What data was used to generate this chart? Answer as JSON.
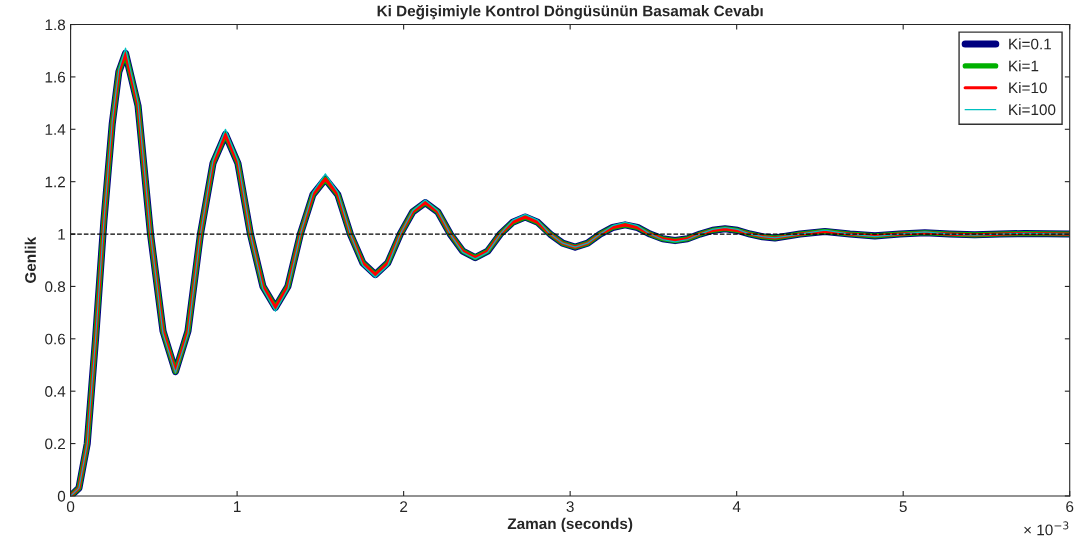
{
  "chart_data": {
    "type": "line",
    "title": "Ki Değişimiyle Kontrol Döngüsünün Basamak Cevabı",
    "xlabel": "Zaman (seconds)",
    "ylabel": "Genlik",
    "annotations": [
      "× 10$^{−3}$"
    ],
    "x": [
      0,
      0.05,
      0.1,
      0.15,
      0.2,
      0.25,
      0.29,
      0.33,
      0.405,
      0.48,
      0.555,
      0.63,
      0.705,
      0.78,
      0.855,
      0.93,
      1.005,
      1.08,
      1.155,
      1.23,
      1.305,
      1.38,
      1.455,
      1.53,
      1.605,
      1.68,
      1.755,
      1.83,
      1.905,
      1.98,
      2.055,
      2.13,
      2.205,
      2.28,
      2.355,
      2.43,
      2.505,
      2.58,
      2.655,
      2.73,
      2.805,
      2.88,
      2.955,
      3.03,
      3.105,
      3.18,
      3.255,
      3.33,
      3.405,
      3.48,
      3.555,
      3.63,
      3.705,
      3.78,
      3.855,
      3.93,
      4.005,
      4.08,
      4.155,
      4.23,
      4.38,
      4.53,
      4.68,
      4.83,
      4.98,
      5.13,
      5.28,
      5.43,
      5.58,
      5.73,
      6.0
    ],
    "series": [
      {
        "name": "Ki=0.1",
        "color": "#000080",
        "values": [
          0,
          0.03,
          0.2,
          0.6,
          1.05,
          1.42,
          1.62,
          1.69,
          1.49,
          1.0,
          0.63,
          0.475,
          0.63,
          1.0,
          1.27,
          1.38,
          1.27,
          1.0,
          0.8,
          0.72,
          0.8,
          1.0,
          1.15,
          1.21,
          1.15,
          1.0,
          0.89,
          0.845,
          0.89,
          1.0,
          1.085,
          1.12,
          1.085,
          1.0,
          0.935,
          0.91,
          0.935,
          1.0,
          1.045,
          1.065,
          1.045,
          1.0,
          0.965,
          0.95,
          0.965,
          1.0,
          1.025,
          1.035,
          1.025,
          1.0,
          0.982,
          0.975,
          0.982,
          1.0,
          1.014,
          1.02,
          1.014,
          1.0,
          0.99,
          0.985,
          1.0,
          1.01,
          1.0,
          0.993,
          1.0,
          1.005,
          1.0,
          0.997,
          1.0,
          1.002,
          1.0
        ]
      },
      {
        "name": "Ki=1",
        "color": "#00b000",
        "values": [
          0,
          0.03,
          0.2,
          0.6,
          1.05,
          1.42,
          1.62,
          1.69,
          1.49,
          1.0,
          0.63,
          0.475,
          0.63,
          1.0,
          1.27,
          1.38,
          1.27,
          1.0,
          0.8,
          0.72,
          0.8,
          1.0,
          1.15,
          1.21,
          1.15,
          1.0,
          0.89,
          0.845,
          0.89,
          1.0,
          1.085,
          1.12,
          1.085,
          1.0,
          0.935,
          0.91,
          0.935,
          1.0,
          1.045,
          1.065,
          1.045,
          1.0,
          0.965,
          0.95,
          0.965,
          1.0,
          1.025,
          1.035,
          1.025,
          1.0,
          0.982,
          0.975,
          0.982,
          1.0,
          1.014,
          1.02,
          1.014,
          1.0,
          0.99,
          0.985,
          1.0,
          1.01,
          1.0,
          0.993,
          1.0,
          1.005,
          1.0,
          0.997,
          1.0,
          1.002,
          1.0
        ]
      },
      {
        "name": "Ki=10",
        "color": "#ff0000",
        "values": [
          0,
          0.03,
          0.2,
          0.6,
          1.05,
          1.42,
          1.62,
          1.69,
          1.49,
          1.0,
          0.63,
          0.475,
          0.63,
          1.0,
          1.27,
          1.38,
          1.27,
          1.0,
          0.8,
          0.72,
          0.8,
          1.0,
          1.15,
          1.21,
          1.15,
          1.0,
          0.89,
          0.845,
          0.89,
          1.0,
          1.085,
          1.12,
          1.085,
          1.0,
          0.935,
          0.91,
          0.935,
          1.0,
          1.045,
          1.065,
          1.045,
          1.0,
          0.965,
          0.95,
          0.965,
          1.0,
          1.025,
          1.035,
          1.025,
          1.0,
          0.982,
          0.975,
          0.982,
          1.0,
          1.014,
          1.02,
          1.014,
          1.0,
          0.99,
          0.985,
          1.0,
          1.01,
          1.0,
          0.993,
          1.0,
          1.005,
          1.0,
          0.997,
          1.0,
          1.002,
          1.0
        ]
      },
      {
        "name": "Ki=100",
        "color": "#00c0c0",
        "values": [
          0,
          0.03,
          0.2,
          0.6,
          1.05,
          1.43,
          1.63,
          1.71,
          1.5,
          1.0,
          0.62,
          0.47,
          0.62,
          1.0,
          1.28,
          1.4,
          1.28,
          1.0,
          0.79,
          0.705,
          0.79,
          1.0,
          1.16,
          1.23,
          1.16,
          1.0,
          0.88,
          0.835,
          0.88,
          1.0,
          1.09,
          1.13,
          1.09,
          1.0,
          0.93,
          0.905,
          0.93,
          1.0,
          1.053,
          1.075,
          1.053,
          1.0,
          0.965,
          0.95,
          0.965,
          1.0,
          1.032,
          1.045,
          1.032,
          1.0,
          0.979,
          0.97,
          0.979,
          1.0,
          1.018,
          1.025,
          1.018,
          1.0,
          0.99,
          0.985,
          1.0,
          1.015,
          1.0,
          0.99,
          1.0,
          1.008,
          1.0,
          0.996,
          1.0,
          1.003,
          1.0
        ]
      }
    ],
    "xlim": [
      0,
      6
    ],
    "xticks": [
      0,
      1,
      2,
      3,
      4,
      5,
      6
    ],
    "ylim": [
      0,
      1.8
    ],
    "yticks": [
      0,
      0.2,
      0.4,
      0.6,
      0.8,
      1,
      1.2,
      1.4,
      1.6,
      1.8
    ],
    "ref_lines": [
      {
        "axis": "y",
        "value": 1,
        "color": "#000000",
        "line_style": "dashed"
      }
    ],
    "grid": false,
    "legend": "top right",
    "marker": "none",
    "line_style": "solid"
  }
}
